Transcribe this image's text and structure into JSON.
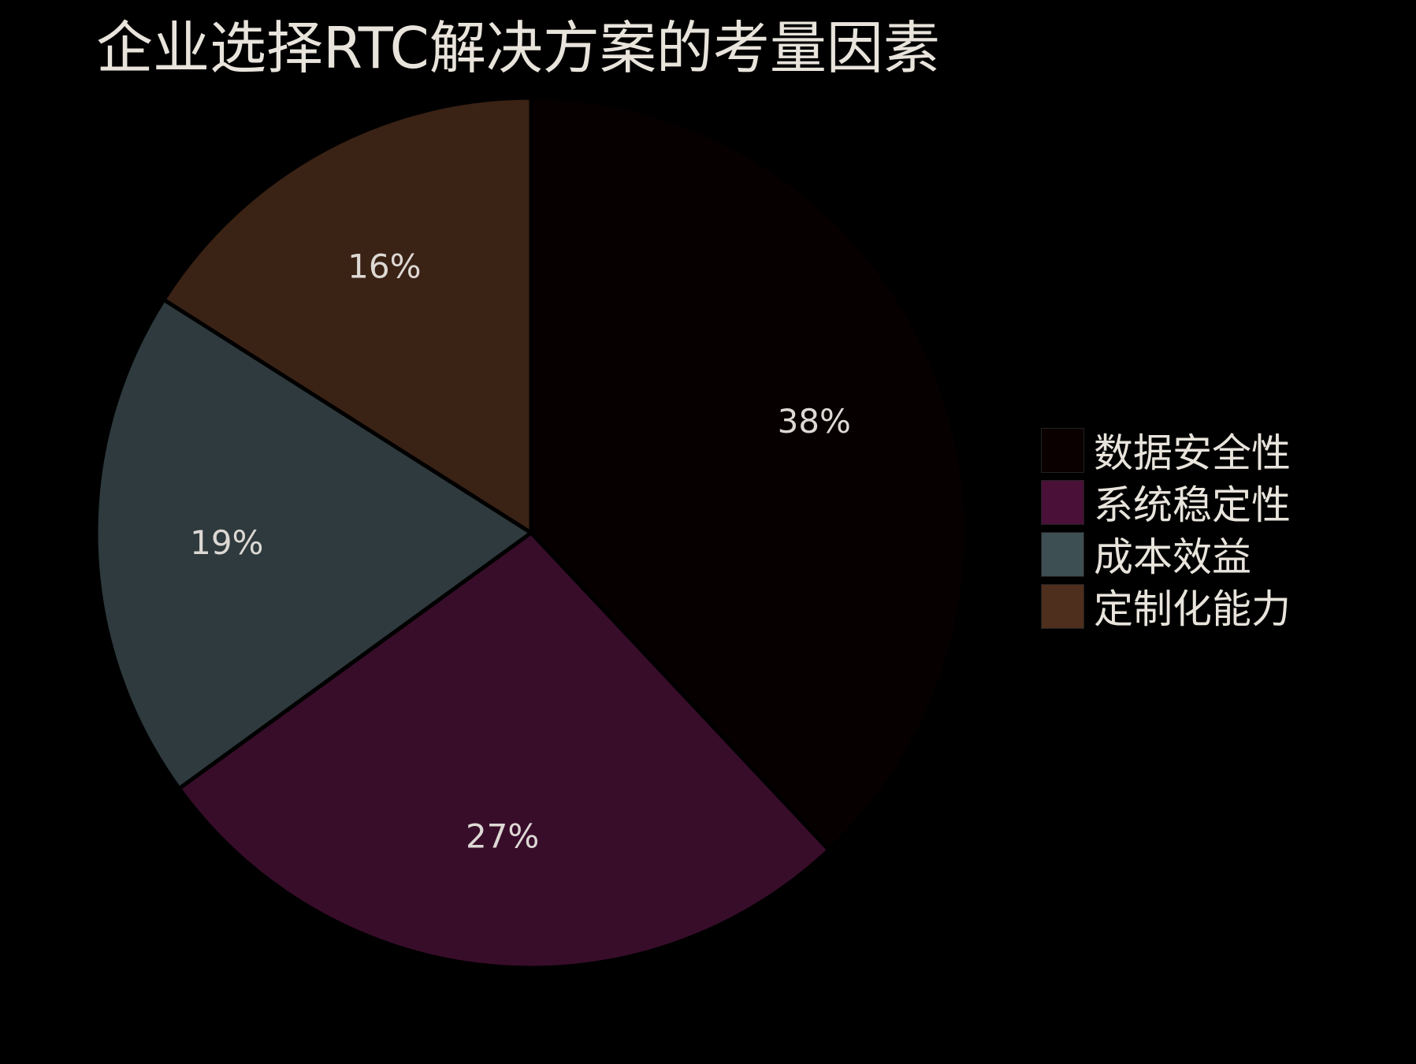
{
  "chart_data": {
    "type": "pie",
    "title": "企业选择RTC解决方案的考量因素",
    "categories": [
      "数据安全性",
      "系统稳定性",
      "成本效益",
      "定制化能力"
    ],
    "values": [
      38,
      27,
      19,
      16
    ],
    "labels": [
      "38%",
      "27%",
      "19%",
      "16%"
    ],
    "colors": [
      "#0a0000",
      "#4a1038",
      "#3e4f54",
      "#4e2e1c"
    ],
    "slice_colors": [
      "#060000",
      "#380d2a",
      "#2e3a3d",
      "#3a2215"
    ],
    "start": "top",
    "direction": "clockwise",
    "legend_position": "right"
  }
}
